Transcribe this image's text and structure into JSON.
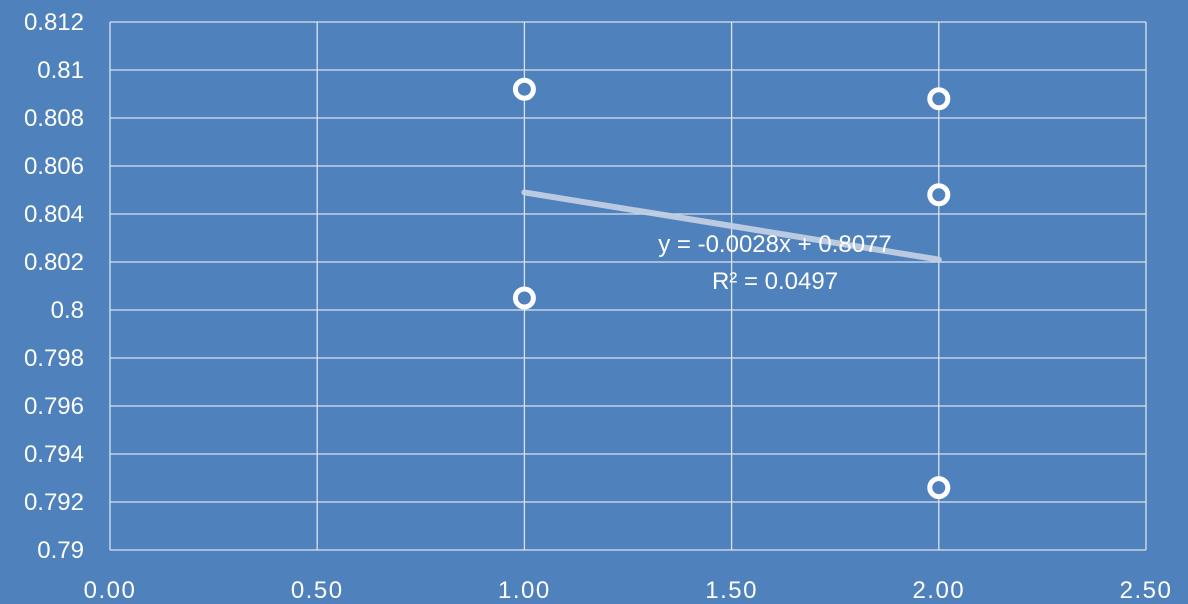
{
  "chart_data": {
    "type": "scatter",
    "title": "",
    "xlabel": "",
    "ylabel": "",
    "xlim": [
      0,
      2.5
    ],
    "ylim": [
      0.79,
      0.812
    ],
    "x_ticks": [
      "0.00",
      "0.50",
      "1.00",
      "1.50",
      "2.00",
      "2.50"
    ],
    "y_ticks": [
      "0.812",
      "0.81",
      "0.808",
      "0.806",
      "0.804",
      "0.802",
      "0.8",
      "0.798",
      "0.796",
      "0.794",
      "0.792",
      "0.79"
    ],
    "grid": true,
    "legend": "none",
    "series": [
      {
        "x": [
          1.0,
          1.0,
          2.0,
          2.0,
          2.0
        ],
        "y": [
          0.8092,
          0.8005,
          0.8088,
          0.8048,
          0.7926
        ]
      }
    ],
    "trendline": {
      "slope": -0.0028,
      "intercept": 0.8077,
      "x_range": [
        1.0,
        2.0
      ],
      "equation": "y = -0.0028x + 0.8077",
      "r_squared": "R² = 0.0497"
    },
    "colors": {
      "background": "#4f81bd",
      "grid": "#d9e2ef",
      "marker_stroke": "#ffffff",
      "trendline": "#c6d3e6",
      "text": "#ffffff"
    }
  }
}
